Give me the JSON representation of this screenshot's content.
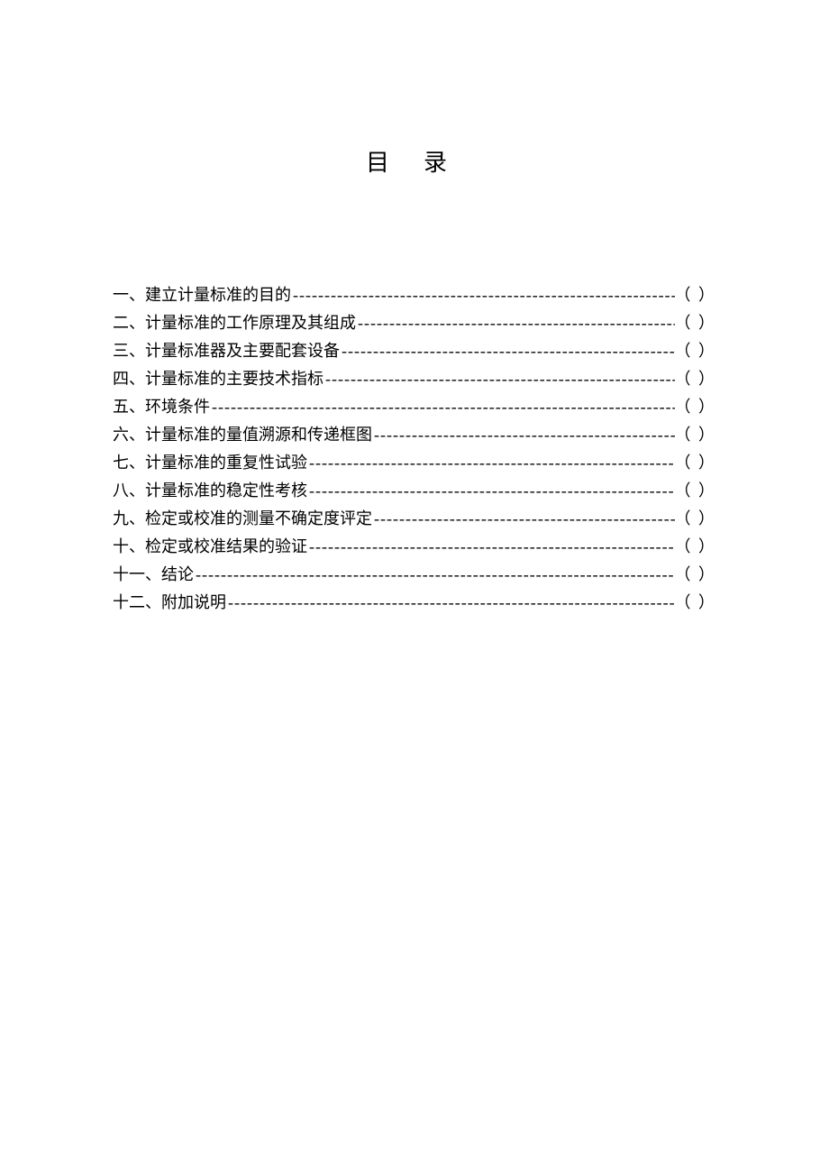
{
  "title": "目录",
  "page_marker": "（ ）",
  "toc": [
    {
      "label": "一、建立计量标准的目的"
    },
    {
      "label": "二、计量标准的工作原理及其组成"
    },
    {
      "label": "三、计量标准器及主要配套设备"
    },
    {
      "label": "四、计量标准的主要技术指标"
    },
    {
      "label": "五、环境条件"
    },
    {
      "label": "六、计量标准的量值溯源和传递框图"
    },
    {
      "label": "七、计量标准的重复性试验"
    },
    {
      "label": "八、计量标准的稳定性考核"
    },
    {
      "label": "九、检定或校准的测量不确定度评定"
    },
    {
      "label": "十、检定或校准结果的验证"
    },
    {
      "label": "十一、结论"
    },
    {
      "label": "十二、附加说明"
    }
  ],
  "style": {
    "background_color": "#ffffff",
    "text_color": "#000000",
    "title_fontsize": 26,
    "title_letter_spacing": 38,
    "body_fontsize": 18,
    "line_height": 31,
    "leader_char": "-"
  }
}
